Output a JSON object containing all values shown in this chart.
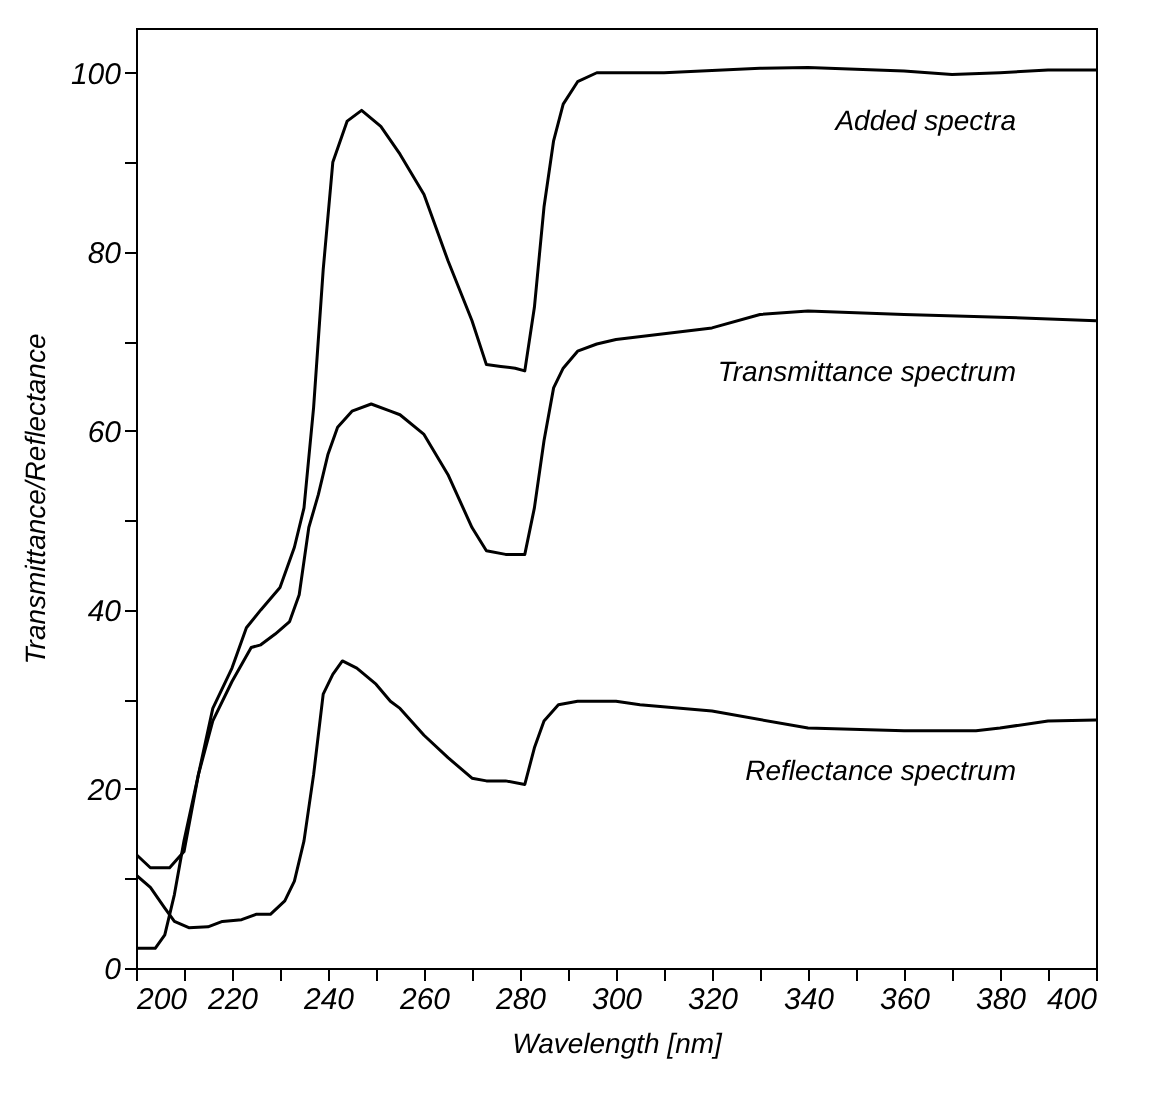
{
  "chart_data": {
    "type": "line",
    "xlabel": "Wavelength [nm]",
    "ylabel": "Transmittance/Reflectance",
    "xlim": [
      200,
      400
    ],
    "ylim": [
      0,
      105
    ],
    "xticks": [
      200,
      {
        "value": 210,
        "label": null
      },
      220,
      {
        "value": 230,
        "label": null
      },
      240,
      {
        "value": 250,
        "label": null
      },
      260,
      {
        "value": 270,
        "label": null
      },
      280,
      {
        "value": 290,
        "label": null
      },
      300,
      {
        "value": 310,
        "label": null
      },
      320,
      {
        "value": 330,
        "label": null
      },
      340,
      {
        "value": 350,
        "label": null
      },
      360,
      {
        "value": 370,
        "label": null
      },
      380,
      {
        "value": 390,
        "label": null
      },
      400
    ],
    "yticks": [
      0,
      {
        "value": 10,
        "label": null
      },
      20,
      {
        "value": 30,
        "label": null
      },
      40,
      {
        "value": 50,
        "label": null
      },
      60,
      {
        "value": 70,
        "label": null
      },
      80,
      {
        "value": 90,
        "label": null
      },
      100
    ],
    "grid": false,
    "legend": false,
    "marker": "none",
    "line_style": "solid",
    "series": [
      {
        "name": "Added spectra",
        "color": "#000000",
        "x": [
          200,
          203,
          207,
          210,
          213,
          216,
          220,
          223,
          226,
          230,
          233,
          235,
          237,
          239,
          241,
          244,
          247,
          251,
          255,
          260,
          265,
          270,
          273,
          276,
          279,
          281,
          283,
          285,
          287,
          289,
          292,
          296,
          300,
          310,
          330,
          340,
          360,
          370,
          380,
          390,
          400
        ],
        "values": [
          12.7,
          11.2,
          11.2,
          13,
          21.6,
          29,
          33.5,
          38,
          40,
          42.5,
          47,
          51.4,
          62.6,
          78,
          90,
          94.6,
          95.8,
          94,
          90.9,
          86.4,
          79,
          72.3,
          67.4,
          67.2,
          67,
          66.7,
          73.8,
          85,
          92.4,
          96.5,
          99,
          100,
          100,
          100,
          100.5,
          100.6,
          100.2,
          99.8,
          100,
          100.3,
          100.3
        ]
      },
      {
        "name": "Transmittance spectrum",
        "color": "#000000",
        "x": [
          200,
          204,
          206,
          208,
          210,
          213,
          216,
          220,
          224,
          226,
          229,
          232,
          234,
          236,
          238,
          240,
          242,
          245,
          249,
          253,
          255,
          260,
          265,
          270,
          273,
          277,
          281,
          283,
          285,
          287,
          289,
          292,
          296,
          300,
          320,
          330,
          340,
          360,
          380,
          400
        ],
        "values": [
          2.2,
          2.2,
          3.7,
          8.2,
          14.2,
          21.6,
          27.6,
          32,
          35.8,
          36.1,
          37.3,
          38.7,
          41.7,
          49.2,
          52.9,
          57.4,
          60.4,
          62.2,
          63,
          62.2,
          61.8,
          59.6,
          55.1,
          49.2,
          46.6,
          46.2,
          46.2,
          51.4,
          58.9,
          64.8,
          67,
          68.9,
          69.7,
          70.2,
          71.5,
          73,
          73.4,
          73,
          72.7,
          72.3
        ]
      },
      {
        "name": "Reflectance spectrum",
        "color": "#000000",
        "x": [
          200,
          203,
          206,
          208,
          211,
          215,
          218,
          222,
          225,
          228,
          231,
          233,
          235,
          237,
          239,
          241,
          243,
          246,
          250,
          253,
          255,
          260,
          265,
          270,
          273,
          277,
          281,
          283,
          285,
          288,
          292,
          300,
          305,
          320,
          340,
          360,
          375,
          380,
          390,
          400
        ],
        "values": [
          10.4,
          9,
          6.7,
          5.2,
          4.5,
          4.6,
          5.2,
          5.4,
          6,
          6,
          7.5,
          9.7,
          14.2,
          21.6,
          30.6,
          32.8,
          34.3,
          33.5,
          31.7,
          29.8,
          29,
          26,
          23.5,
          21.2,
          20.9,
          20.9,
          20.5,
          24.6,
          27.6,
          29.4,
          29.8,
          29.8,
          29.4,
          28.7,
          26.8,
          26.5,
          26.5,
          26.8,
          27.6,
          27.7
        ]
      }
    ]
  }
}
